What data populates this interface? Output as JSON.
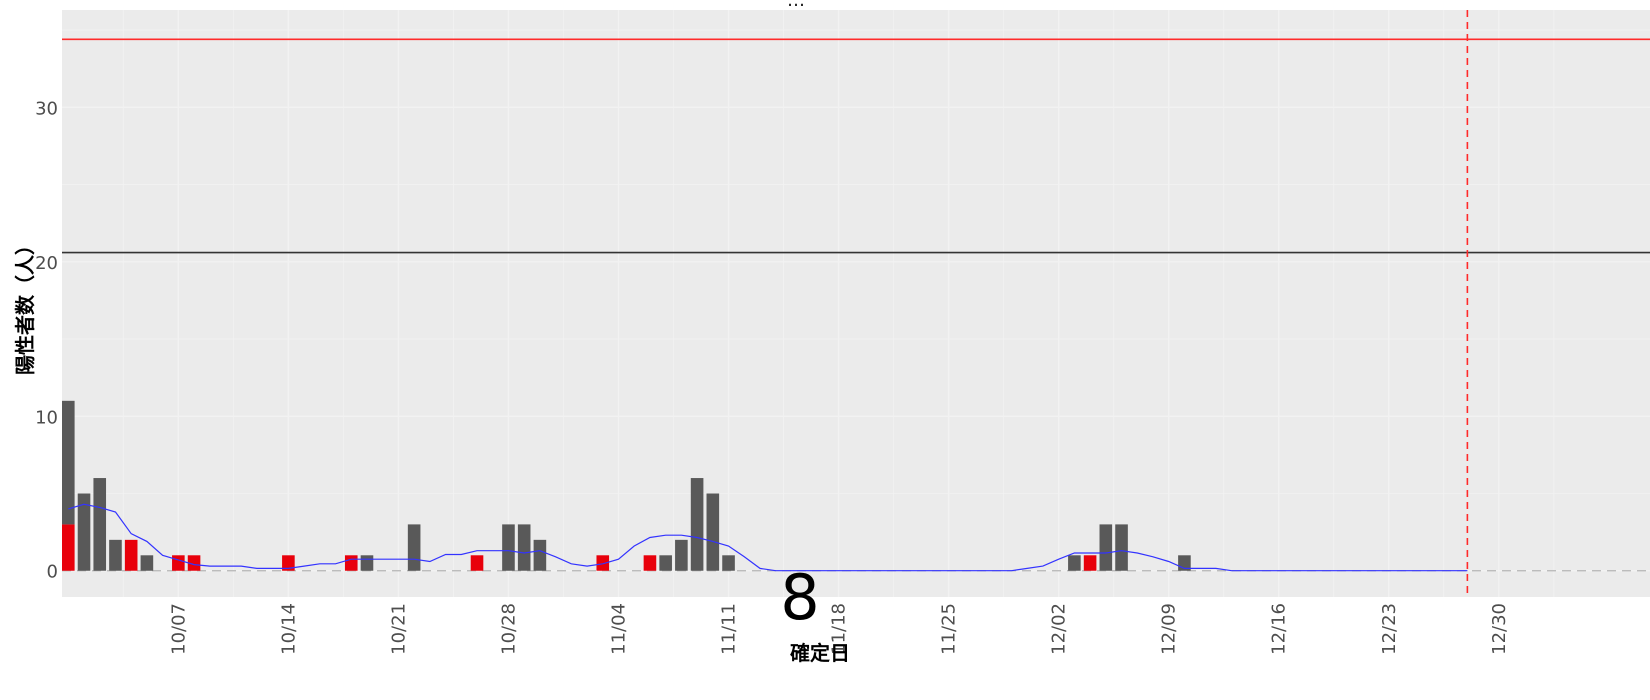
{
  "overlay_number": "8",
  "chart_data": {
    "type": "bar",
    "stacked": true,
    "xlabel": "確定日",
    "ylabel": "陽性者数（人）",
    "ylim": [
      -1.7,
      36.3
    ],
    "y_ticks": [
      0,
      10,
      20,
      30
    ],
    "x_start": "2020-09-30",
    "x_ticks": [
      "10/07",
      "10/14",
      "10/21",
      "10/28",
      "11/04",
      "11/11",
      "11/18",
      "11/25",
      "12/02",
      "12/09",
      "12/16",
      "12/23",
      "12/30"
    ],
    "grid": true,
    "colors": {
      "panel": "#ebebeb",
      "grid": "#f2f2f2",
      "bar_gray": "#595959",
      "bar_red": "#e8000b",
      "moving_average": "#3333ff",
      "upper_threshold": "#ff2a2a",
      "threshold": "#333333",
      "zero_line": "#b5b5b5",
      "end_marker": "#ff2a2a"
    },
    "reference_lines": {
      "upper": 34.4,
      "middle": 20.6,
      "end_date": "2020-12-28"
    },
    "series": [
      {
        "color_key": "bar_red",
        "values": [
          3,
          0,
          0,
          0,
          2,
          0,
          0,
          1,
          1,
          0,
          0,
          0,
          0,
          0,
          1,
          0,
          0,
          0,
          1,
          0,
          0,
          0,
          0,
          0,
          0,
          0,
          1,
          0,
          0,
          0,
          0,
          0,
          0,
          0,
          1,
          0,
          0,
          1,
          0,
          0,
          0,
          0,
          0,
          0,
          0,
          0,
          0,
          0,
          0,
          0,
          0,
          0,
          0,
          0,
          0,
          0,
          0,
          0,
          0,
          0,
          0,
          0,
          0,
          0,
          0,
          1,
          0,
          0,
          0,
          0,
          0,
          0,
          0,
          0,
          0,
          0,
          0,
          0,
          0,
          0,
          0,
          0,
          0,
          0,
          0,
          0,
          0,
          0,
          0,
          0,
          0
        ]
      },
      {
        "color_key": "bar_gray",
        "values": [
          8,
          5,
          6,
          2,
          0,
          1,
          0,
          0,
          0,
          0,
          0,
          0,
          0,
          0,
          0,
          0,
          0,
          0,
          0,
          1,
          0,
          0,
          3,
          0,
          0,
          0,
          0,
          0,
          3,
          3,
          2,
          0,
          0,
          0,
          0,
          0,
          0,
          0,
          1,
          2,
          6,
          5,
          1,
          0,
          0,
          0,
          0,
          0,
          0,
          0,
          0,
          0,
          0,
          0,
          0,
          0,
          0,
          0,
          0,
          0,
          0,
          0,
          0,
          0,
          1,
          0,
          3,
          3,
          0,
          0,
          0,
          1,
          0,
          0,
          0,
          0,
          0,
          0,
          0,
          0,
          0,
          0,
          0,
          0,
          0,
          0,
          0,
          0,
          0,
          0,
          0
        ]
      }
    ],
    "moving_average": [
      4.0,
      4.3,
      4.1,
      3.8,
      2.4,
      1.9,
      1.0,
      0.7,
      0.4,
      0.3,
      0.3,
      0.3,
      0.15,
      0.15,
      0.15,
      0.3,
      0.45,
      0.45,
      0.75,
      0.75,
      0.75,
      0.75,
      0.75,
      0.6,
      1.05,
      1.05,
      1.3,
      1.3,
      1.3,
      1.15,
      1.3,
      0.9,
      0.45,
      0.3,
      0.45,
      0.75,
      1.6,
      2.15,
      2.3,
      2.3,
      2.15,
      1.9,
      1.6,
      0.9,
      0.15,
      0.0,
      0.0,
      0.0,
      0.0,
      0.0,
      0.0,
      0.0,
      0.0,
      0.0,
      0.0,
      0.0,
      0.0,
      0.0,
      0.0,
      0.0,
      0.0,
      0.15,
      0.3,
      0.75,
      1.15,
      1.15,
      1.15,
      1.3,
      1.15,
      0.9,
      0.6,
      0.15,
      0.15,
      0.15,
      0.0,
      0.0,
      0.0,
      0.0,
      0.0,
      0.0,
      0.0,
      0.0,
      0.0,
      0.0,
      0.0,
      0.0,
      0.0,
      0.0,
      0.0,
      0.0
    ]
  }
}
